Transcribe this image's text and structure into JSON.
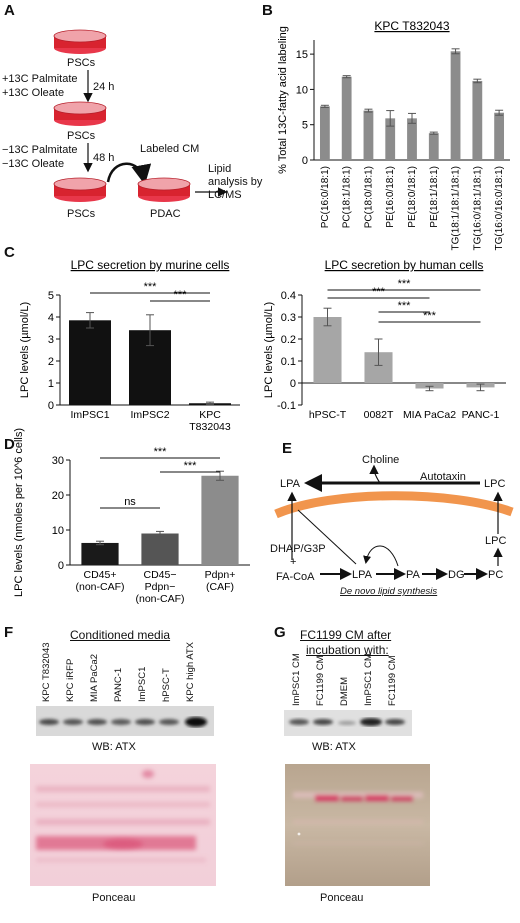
{
  "panels": {
    "A": {
      "label": "A",
      "top_dish": "PSCs",
      "add_lines": [
        "+13C Palmitate",
        "+13C Oleate"
      ],
      "t1": "24 h",
      "mid_dish": "PSCs",
      "remove_lines": [
        "−13C Palmitate",
        "−13C Oleate"
      ],
      "t2": "48 h",
      "cm_label": "Labeled CM",
      "dish_left": "PSCs",
      "dish_right": "PDAC",
      "out_lines": [
        "Lipid",
        "analysis by",
        "LC/MS"
      ]
    },
    "B": {
      "label": "B"
    },
    "C": {
      "label": "C"
    },
    "D": {
      "label": "D"
    },
    "E": {
      "label": "E",
      "choline": "Choline",
      "autotaxin": "Autotaxin",
      "lpa_top": "LPA",
      "lpc_top": "LPC",
      "lpc_mid": "LPC",
      "dhap": "DHAP/G3P",
      "plus": "+",
      "facoa": "FA-CoA",
      "lpa": "LPA",
      "pa": "PA",
      "dg": "DG",
      "pc": "PC",
      "caption": "De novo lipid synthesis"
    },
    "F": {
      "label": "F",
      "title": "Conditioned media",
      "lanes": [
        "KPC T832043",
        "KPC iRFP",
        "MIA PaCa2",
        "PANC-1",
        "ImPSC1",
        "hPSC-T",
        "KPC high ATX"
      ],
      "wb": "WB: ATX",
      "ponceau": "Ponceau"
    },
    "G": {
      "label": "G",
      "title_lines": [
        "FC1199 CM after",
        "incubation with:"
      ],
      "lanes": [
        "ImPSC1 CM",
        "FC1199 CM",
        "DMEM",
        "ImPSC1 CM",
        "FC1199 CM"
      ],
      "wb": "WB: ATX",
      "ponceau": "Ponceau"
    }
  },
  "chart_data": [
    {
      "id": "B",
      "type": "bar",
      "title": "KPC T832043",
      "ylabel": "% Total 13C-fatty acid labeling",
      "ylim": [
        0,
        17
      ],
      "yticks": [
        0,
        5,
        10,
        15
      ],
      "categories": [
        "PC(16:0/18:1)",
        "PC(18:1/18:1)",
        "PC(18:0/18:1)",
        "PE(16:0/18:1)",
        "PE(18:0/18:1)",
        "PE(18:1/18:1)",
        "TG(18:1/18:1/18:1)",
        "TG(16:0/18:1/18:1)",
        "TG(16:0/16:0/18:1)"
      ],
      "values": [
        7.6,
        11.8,
        7.0,
        5.9,
        5.9,
        3.8,
        15.4,
        11.2,
        6.7
      ],
      "errors": [
        0.15,
        0.15,
        0.2,
        1.1,
        0.7,
        0.15,
        0.35,
        0.25,
        0.35
      ],
      "color": "#8c8c8c"
    },
    {
      "id": "C1",
      "type": "bar",
      "title": "LPC secretion by murine cells",
      "ylabel": "LPC levels (µmol/L)",
      "ylim": [
        0,
        5
      ],
      "yticks": [
        0,
        1,
        2,
        3,
        4,
        5
      ],
      "categories": [
        "ImPSC1",
        "ImPSC2",
        "KPC T832043"
      ],
      "values": [
        3.85,
        3.4,
        0.08
      ],
      "errors": [
        0.35,
        0.7,
        0.05
      ],
      "significance": [
        {
          "from": 0,
          "to": 2,
          "label": "***"
        },
        {
          "from": 1,
          "to": 2,
          "label": "***"
        }
      ],
      "color": "#111111"
    },
    {
      "id": "C2",
      "type": "bar",
      "title": "LPC secretion by human cells",
      "ylabel": "LPC levels (µmol/L)",
      "ylim": [
        -0.1,
        0.4
      ],
      "yticks": [
        -0.1,
        0,
        0.1,
        0.2,
        0.3,
        0.4
      ],
      "categories": [
        "hPSC-T",
        "0082T",
        "MIA PaCa2",
        "PANC-1"
      ],
      "values": [
        0.3,
        0.14,
        -0.025,
        -0.02
      ],
      "errors": [
        0.04,
        0.06,
        0.01,
        0.015
      ],
      "significance": [
        {
          "from": 0,
          "to": 2,
          "label": "***"
        },
        {
          "from": 0,
          "to": 3,
          "label": "***"
        },
        {
          "from": 1,
          "to": 2,
          "label": "***"
        },
        {
          "from": 1,
          "to": 3,
          "label": "***"
        }
      ],
      "color": "#a6a6a6"
    },
    {
      "id": "D",
      "type": "bar",
      "ylabel": "LPC levels (nmoles per 10^6 cells)",
      "ylim": [
        0,
        30
      ],
      "yticks": [
        0,
        10,
        20,
        30
      ],
      "categories": [
        "CD45+ (non-CAF)",
        "CD45− Pdpn− (non-CAF)",
        "Pdpn+ (CAF)"
      ],
      "values": [
        6.3,
        9.0,
        25.5
      ],
      "errors": [
        0.5,
        0.6,
        1.3
      ],
      "significance": [
        {
          "from": 0,
          "to": 1,
          "label": "ns"
        },
        {
          "from": 0,
          "to": 2,
          "label": "***"
        },
        {
          "from": 1,
          "to": 2,
          "label": "***"
        }
      ],
      "colors": [
        "#1a1a1a",
        "#555555",
        "#8c8c8c"
      ]
    }
  ]
}
